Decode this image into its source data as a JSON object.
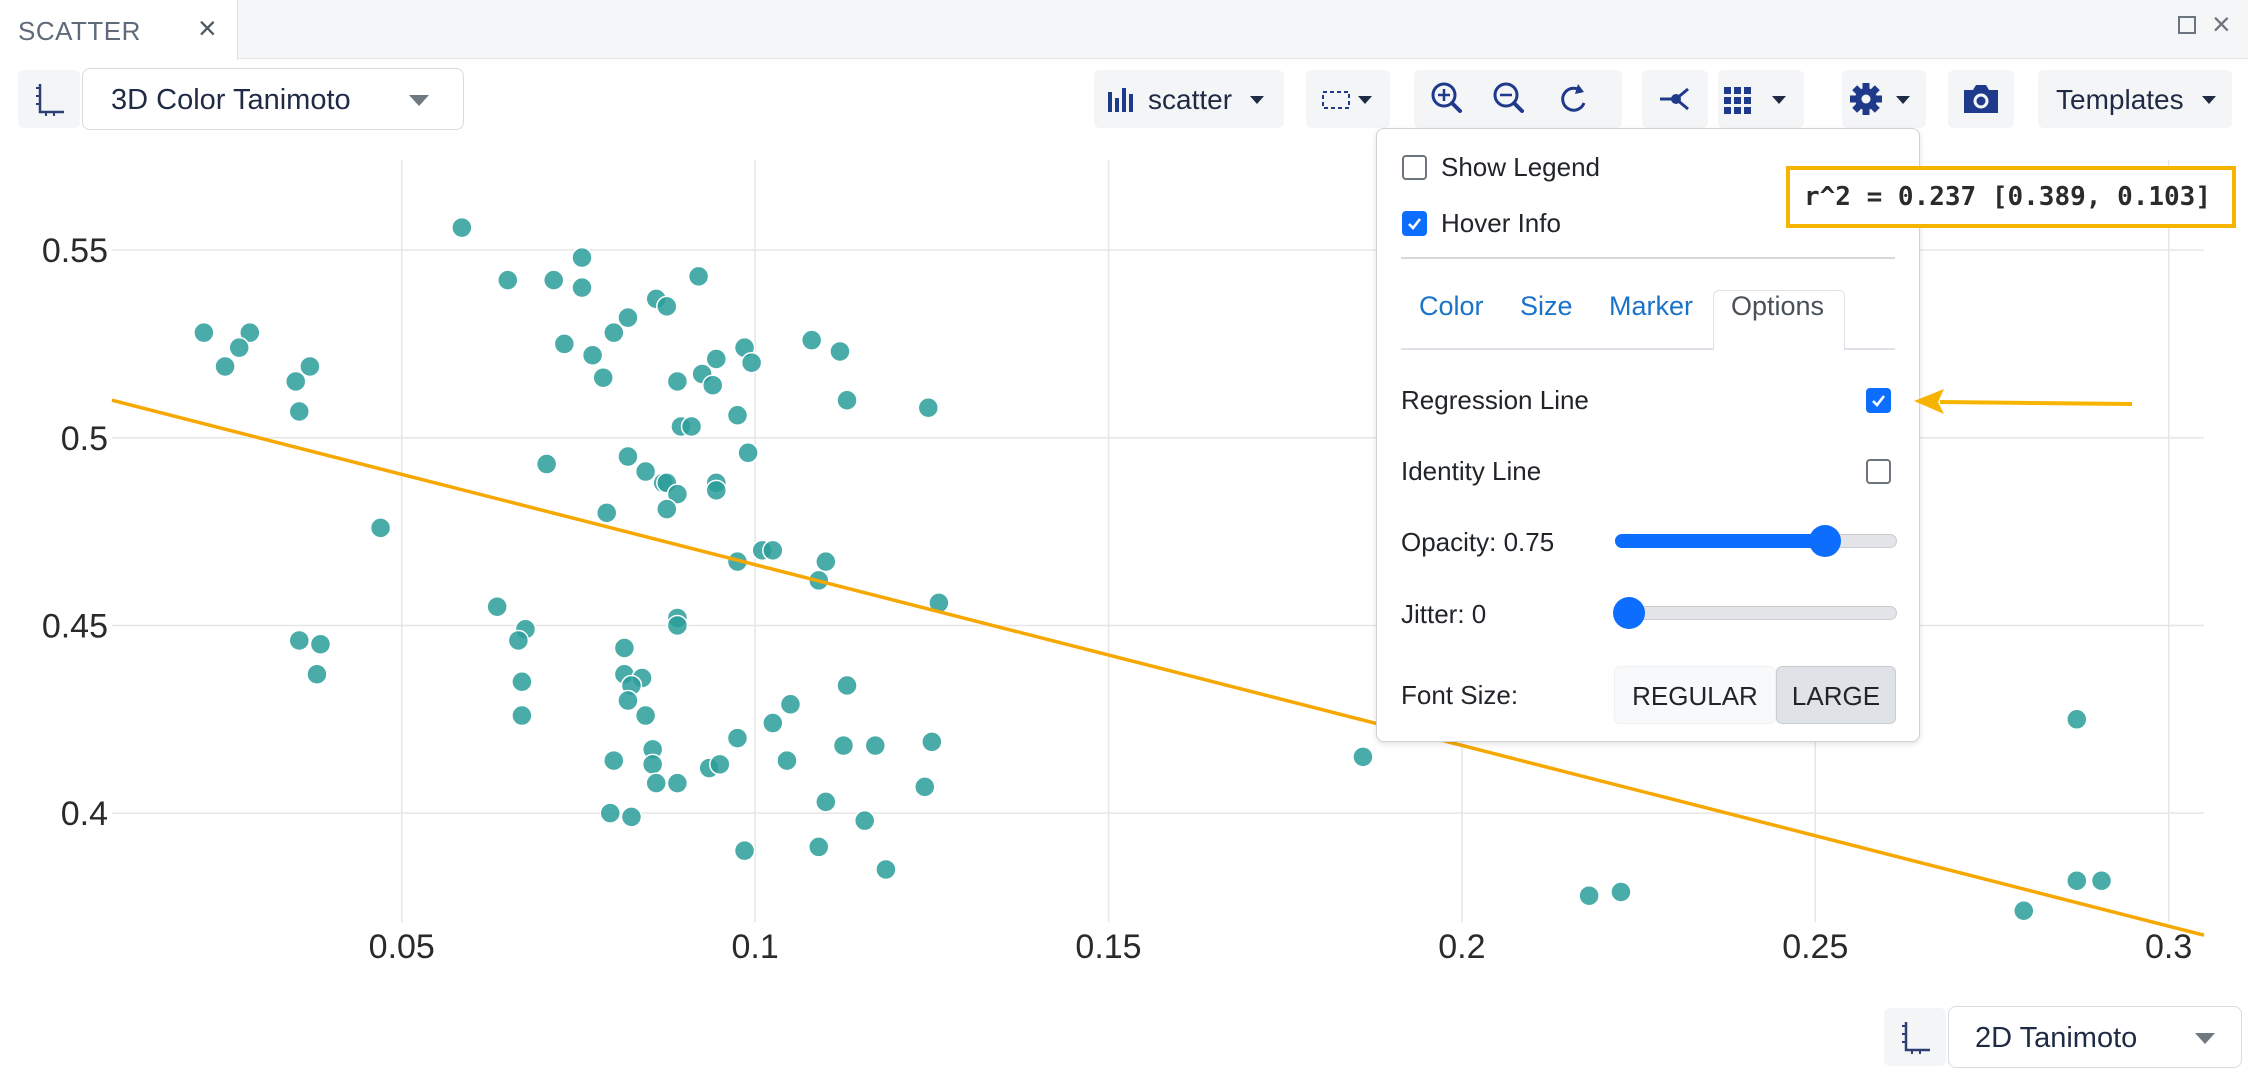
{
  "tab": {
    "title": "SCATTER",
    "close": "×"
  },
  "window": {
    "close": "×"
  },
  "toolbar": {
    "y_column": "3D Color Tanimoto",
    "plot_type": "scatter",
    "templates": "Templates"
  },
  "x_column": "2D Tanimoto",
  "options_panel": {
    "show_legend": {
      "label": "Show Legend",
      "checked": false
    },
    "hover_info": {
      "label": "Hover Info",
      "checked": true
    },
    "tabs": [
      "Color",
      "Size",
      "Marker",
      "Options"
    ],
    "active_tab": "Options",
    "regression_line": {
      "label": "Regression Line",
      "checked": true
    },
    "identity_line": {
      "label": "Identity Line",
      "checked": false
    },
    "opacity": {
      "label": "Opacity: 0.75",
      "value": 0.75
    },
    "jitter": {
      "label": "Jitter: 0",
      "value": 0
    },
    "font_size": {
      "label": "Font Size:",
      "options": [
        "REGULAR",
        "LARGE"
      ],
      "selected": "LARGE"
    }
  },
  "annotation": {
    "text": "r^2 = 0.237  [0.389, 0.103]",
    "color": "#f6b400"
  },
  "colors": {
    "points": "#2a9d9a",
    "regression": "#f6a800",
    "accent": "#0d6efd"
  },
  "chart_data": {
    "type": "scatter",
    "xlabel": "",
    "ylabel": "",
    "xlim": [
      0.009,
      0.305
    ],
    "ylim": [
      0.371,
      0.574
    ],
    "x_ticks": [
      "0.05",
      "0.1",
      "0.15",
      "0.2",
      "0.25",
      "0.3"
    ],
    "y_ticks": [
      "0.4",
      "0.45",
      "0.5",
      "0.55"
    ],
    "grid": true,
    "regression_line": {
      "x": [
        0.009,
        0.305
      ],
      "y": [
        0.51,
        0.3675
      ]
    },
    "points": [
      [
        0.0585,
        0.556
      ],
      [
        0.0755,
        0.548
      ],
      [
        0.065,
        0.542
      ],
      [
        0.0715,
        0.542
      ],
      [
        0.0755,
        0.54
      ],
      [
        0.086,
        0.537
      ],
      [
        0.0875,
        0.535
      ],
      [
        0.092,
        0.543
      ],
      [
        0.082,
        0.532
      ],
      [
        0.08,
        0.528
      ],
      [
        0.073,
        0.525
      ],
      [
        0.077,
        0.522
      ],
      [
        0.0785,
        0.516
      ],
      [
        0.089,
        0.515
      ],
      [
        0.0925,
        0.517
      ],
      [
        0.094,
        0.514
      ],
      [
        0.0945,
        0.521
      ],
      [
        0.0985,
        0.524
      ],
      [
        0.0995,
        0.52
      ],
      [
        0.108,
        0.526
      ],
      [
        0.112,
        0.523
      ],
      [
        0.113,
        0.51
      ],
      [
        0.1245,
        0.508
      ],
      [
        0.0975,
        0.506
      ],
      [
        0.0895,
        0.503
      ],
      [
        0.091,
        0.503
      ],
      [
        0.099,
        0.496
      ],
      [
        0.082,
        0.495
      ],
      [
        0.0845,
        0.491
      ],
      [
        0.087,
        0.488
      ],
      [
        0.0875,
        0.488
      ],
      [
        0.0945,
        0.488
      ],
      [
        0.0945,
        0.486
      ],
      [
        0.089,
        0.485
      ],
      [
        0.0875,
        0.481
      ],
      [
        0.079,
        0.48
      ],
      [
        0.0705,
        0.493
      ],
      [
        0.022,
        0.528
      ],
      [
        0.0285,
        0.528
      ],
      [
        0.027,
        0.524
      ],
      [
        0.025,
        0.519
      ],
      [
        0.037,
        0.519
      ],
      [
        0.035,
        0.515
      ],
      [
        0.0355,
        0.507
      ],
      [
        0.047,
        0.476
      ],
      [
        0.0975,
        0.467
      ],
      [
        0.101,
        0.47
      ],
      [
        0.1025,
        0.47
      ],
      [
        0.11,
        0.467
      ],
      [
        0.109,
        0.462
      ],
      [
        0.126,
        0.456
      ],
      [
        0.0635,
        0.455
      ],
      [
        0.0675,
        0.449
      ],
      [
        0.0665,
        0.446
      ],
      [
        0.089,
        0.452
      ],
      [
        0.089,
        0.45
      ],
      [
        0.0355,
        0.446
      ],
      [
        0.0385,
        0.445
      ],
      [
        0.038,
        0.437
      ],
      [
        0.0815,
        0.444
      ],
      [
        0.0815,
        0.437
      ],
      [
        0.084,
        0.436
      ],
      [
        0.0825,
        0.434
      ],
      [
        0.082,
        0.43
      ],
      [
        0.067,
        0.435
      ],
      [
        0.067,
        0.426
      ],
      [
        0.0845,
        0.426
      ],
      [
        0.105,
        0.429
      ],
      [
        0.1025,
        0.424
      ],
      [
        0.113,
        0.434
      ],
      [
        0.0975,
        0.42
      ],
      [
        0.1125,
        0.418
      ],
      [
        0.117,
        0.418
      ],
      [
        0.125,
        0.419
      ],
      [
        0.0855,
        0.417
      ],
      [
        0.08,
        0.414
      ],
      [
        0.0855,
        0.413
      ],
      [
        0.0935,
        0.412
      ],
      [
        0.095,
        0.413
      ],
      [
        0.1045,
        0.414
      ],
      [
        0.086,
        0.408
      ],
      [
        0.089,
        0.408
      ],
      [
        0.124,
        0.407
      ],
      [
        0.11,
        0.403
      ],
      [
        0.0795,
        0.4
      ],
      [
        0.0825,
        0.399
      ],
      [
        0.1155,
        0.398
      ],
      [
        0.0985,
        0.39
      ],
      [
        0.109,
        0.391
      ],
      [
        0.1185,
        0.385
      ],
      [
        0.186,
        0.415
      ],
      [
        0.218,
        0.378
      ],
      [
        0.2225,
        0.379
      ],
      [
        0.2795,
        0.374
      ],
      [
        0.287,
        0.382
      ],
      [
        0.2905,
        0.382
      ],
      [
        0.287,
        0.425
      ]
    ]
  }
}
